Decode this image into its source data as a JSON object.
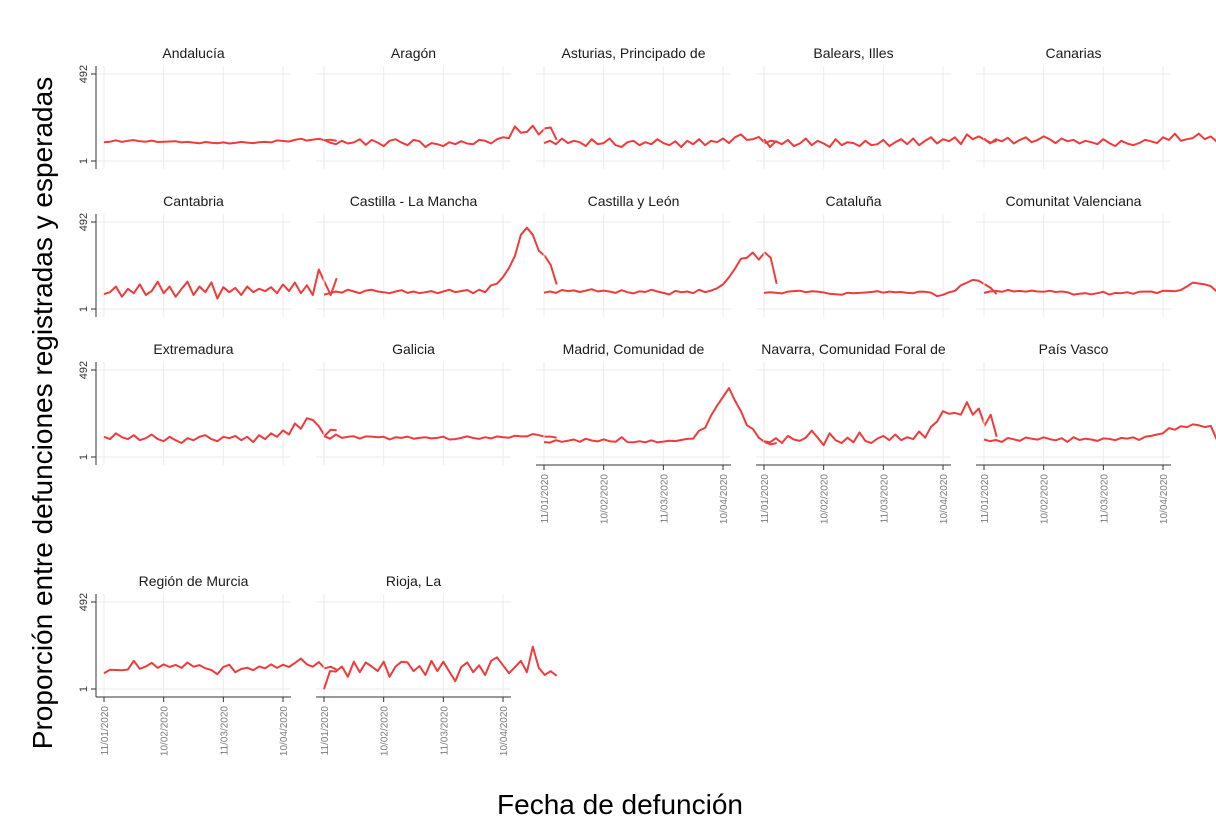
{
  "chart_data": {
    "type": "line",
    "title": "",
    "xlabel": "Fecha de defunción",
    "ylabel": "Proporción entre defunciones registradas y esperadas",
    "y_ticks": [
      "492",
      "1"
    ],
    "ylim": [
      1,
      492
    ],
    "x_ticks": [
      "11/01/2020",
      "10/02/2020",
      "11/03/2020",
      "10/04/2020"
    ],
    "xlim": [
      "2020-01-11",
      "2020-04-10"
    ],
    "x_start": "2020-01-11",
    "x_step_days": 3,
    "grid": true,
    "line_color": "#ef3b3b",
    "facet_layout": "4 rows x 5 columns",
    "panels": [
      {
        "name": "Andalucía",
        "values": [
          107,
          110,
          118,
          109,
          115,
          119,
          112,
          110,
          116,
          108,
          110,
          111,
          113,
          106,
          109,
          105,
          101,
          108,
          104,
          101,
          106,
          100,
          103,
          109,
          105,
          102,
          107,
          109,
          106,
          117,
          114,
          111,
          120,
          127,
          116,
          122,
          126,
          119,
          121,
          115
        ]
      },
      {
        "name": "Aragón",
        "values": [
          120,
          105,
          96,
          115,
          100,
          106,
          124,
          92,
          120,
          105,
          85,
          115,
          124,
          105,
          90,
          120,
          113,
          80,
          102,
          96,
          85,
          107,
          96,
          113,
          100,
          96,
          120,
          115,
          100,
          124,
          135,
          130,
          196,
          160,
          165,
          200,
          150,
          185,
          190,
          120
        ]
      },
      {
        "name": "Asturias, Principado de",
        "values": [
          102,
          115,
          96,
          128,
          102,
          115,
          107,
          85,
          124,
          96,
          102,
          128,
          90,
          80,
          107,
          115,
          90,
          107,
          96,
          124,
          102,
          90,
          112,
          80,
          115,
          96,
          124,
          90,
          115,
          107,
          128,
          102,
          135,
          151,
          120,
          124,
          137,
          102,
          115,
          110
        ]
      },
      {
        "name": "Balears, Illes",
        "values": [
          124,
          80,
          112,
          96,
          120,
          85,
          100,
          128,
          90,
          115,
          100,
          80,
          124,
          90,
          107,
          102,
          85,
          115,
          90,
          96,
          120,
          85,
          107,
          124,
          96,
          128,
          90,
          115,
          135,
          100,
          124,
          113,
          135,
          96,
          151,
          124,
          140,
          120,
          105,
          115
        ]
      },
      {
        "name": "Canarias",
        "values": [
          128,
          100,
          124,
          112,
          132,
          100,
          120,
          135,
          107,
          120,
          140,
          124,
          102,
          128,
          113,
          120,
          100,
          115,
          107,
          96,
          124,
          102,
          85,
          115,
          100,
          90,
          102,
          120,
          112,
          102,
          135,
          120,
          155,
          115,
          124,
          130,
          155,
          124,
          140,
          110
        ]
      },
      {
        "name": "Cantabria",
        "values": [
          85,
          96,
          128,
          70,
          115,
          90,
          140,
          80,
          102,
          155,
          90,
          128,
          70,
          115,
          155,
          80,
          128,
          96,
          151,
          60,
          124,
          96,
          120,
          80,
          128,
          96,
          115,
          102,
          124,
          90,
          140,
          102,
          150,
          90,
          135,
          80,
          224,
          150,
          80,
          175
        ]
      },
      {
        "name": "Castilla - La Mancha",
        "values": [
          82,
          90,
          100,
          93,
          110,
          100,
          90,
          105,
          110,
          100,
          96,
          90,
          100,
          107,
          92,
          100,
          90,
          96,
          102,
          90,
          100,
          110,
          96,
          102,
          108,
          90,
          110,
          96,
          135,
          144,
          181,
          232,
          300,
          420,
          460,
          420,
          330,
          300,
          250,
          140
        ]
      },
      {
        "name": "Castilla y León",
        "values": [
          93,
          100,
          92,
          108,
          102,
          106,
          97,
          105,
          113,
          100,
          105,
          100,
          92,
          107,
          96,
          89,
          101,
          97,
          110,
          100,
          92,
          83,
          103,
          96,
          100,
          90,
          110,
          96,
          105,
          118,
          140,
          180,
          228,
          285,
          290,
          320,
          280,
          320,
          290,
          143
        ]
      },
      {
        "name": "Cataluña",
        "values": [
          92,
          96,
          93,
          89,
          99,
          102,
          104,
          96,
          101,
          99,
          94,
          87,
          84,
          81,
          93,
          90,
          92,
          94,
          97,
          102,
          93,
          99,
          95,
          97,
          92,
          90,
          99,
          98,
          93,
          73,
          81,
          95,
          103,
          135,
          150,
          165,
          160,
          140,
          120,
          85
        ]
      },
      {
        "name": "Comunitat Valenciana",
        "values": [
          92,
          100,
          103,
          98,
          109,
          100,
          103,
          99,
          105,
          100,
          98,
          104,
          97,
          100,
          95,
          82,
          87,
          91,
          84,
          90,
          98,
          82,
          92,
          90,
          96,
          87,
          98,
          99,
          100,
          91,
          104,
          103,
          101,
          108,
          128,
          150,
          145,
          140,
          130,
          100
        ]
      },
      {
        "name": "Extremadura",
        "values": [
          115,
          102,
          135,
          113,
          102,
          124,
          96,
          107,
          128,
          102,
          90,
          115,
          96,
          80,
          107,
          96,
          115,
          124,
          102,
          90,
          115,
          107,
          120,
          96,
          115,
          85,
          124,
          102,
          135,
          115,
          151,
          128,
          190,
          160,
          220,
          210,
          175,
          120,
          155,
          152
        ]
      },
      {
        "name": "Galicia",
        "values": [
          119,
          104,
          128,
          109,
          115,
          118,
          105,
          117,
          116,
          112,
          115,
          100,
          113,
          109,
          116,
          104,
          109,
          113,
          106,
          109,
          116,
          100,
          102,
          109,
          117,
          108,
          103,
          113,
          106,
          117,
          112,
          110,
          121,
          117,
          117,
          131,
          124,
          116,
          116,
          110
        ]
      },
      {
        "name": "Madrid, Comunidad de",
        "values": [
          85,
          82,
          96,
          87,
          93,
          100,
          87,
          104,
          94,
          89,
          101,
          90,
          87,
          113,
          85,
          84,
          90,
          84,
          95,
          84,
          88,
          93,
          91,
          97,
          103,
          105,
          150,
          165,
          235,
          290,
          340,
          390,
          320,
          260,
          180,
          160,
          110,
          85,
          72,
          80
        ]
      },
      {
        "name": "Navarra, Comunidad Foral de",
        "values": [
          90,
          84,
          107,
          80,
          120,
          100,
          92,
          110,
          150,
          110,
          68,
          135,
          96,
          80,
          110,
          84,
          140,
          92,
          80,
          105,
          120,
          96,
          128,
          96,
          113,
          102,
          145,
          110,
          172,
          200,
          260,
          245,
          250,
          240,
          310,
          240,
          275,
          180,
          240,
          115
        ]
      },
      {
        "name": "País Vasco",
        "values": [
          100,
          90,
          97,
          86,
          108,
          101,
          92,
          111,
          104,
          99,
          112,
          102,
          95,
          107,
          86,
          113,
          97,
          104,
          100,
          92,
          106,
          103,
          96,
          109,
          105,
          112,
          97,
          115,
          120,
          128,
          135,
          164,
          155,
          175,
          170,
          185,
          180,
          170,
          177,
          100
        ]
      },
      {
        "name": "Región de Murcia",
        "values": [
          90,
          110,
          108,
          107,
          111,
          160,
          115,
          128,
          149,
          120,
          140,
          125,
          137,
          120,
          151,
          127,
          136,
          118,
          108,
          84,
          125,
          138,
          96,
          114,
          121,
          107,
          128,
          118,
          140,
          120,
          138,
          125,
          148,
          173,
          140,
          127,
          153,
          118,
          127,
          110
        ]
      },
      {
        "name": "Rioja, La",
        "values": [
          0,
          102,
          100,
          128,
          70,
          155,
          96,
          151,
          128,
          102,
          155,
          70,
          128,
          155,
          151,
          102,
          130,
          80,
          160,
          102,
          155,
          100,
          45,
          124,
          151,
          96,
          135,
          80,
          160,
          180,
          135,
          90,
          124,
          160,
          96,
          240,
          120,
          80,
          102,
          75
        ]
      }
    ]
  }
}
